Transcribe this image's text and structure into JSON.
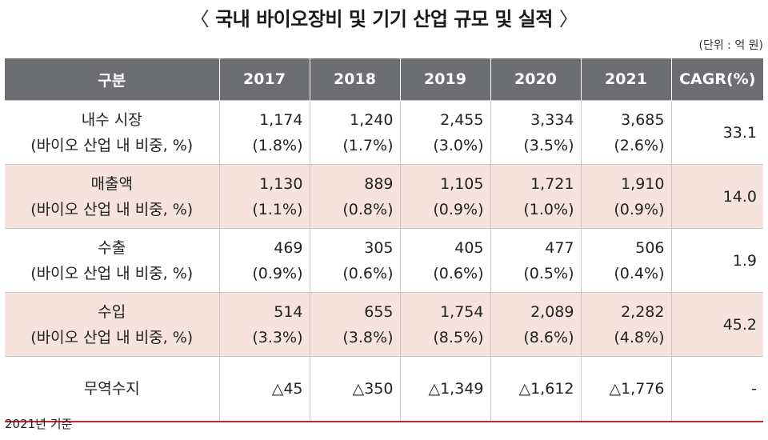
{
  "title": "국내 바이오장비 및 기기 산업 규모 및 실적",
  "title_left": "〈",
  "title_right": "〉",
  "unit": "(단위 : 억 원)",
  "headers": [
    "구분",
    "2017",
    "2018",
    "2019",
    "2020",
    "2021",
    "CAGR(%)"
  ],
  "rows": [
    {
      "label": "내수 시장",
      "sublabel": "(바이오 산업 내 비중, %)",
      "values": [
        "1,174",
        "1,240",
        "2,455",
        "3,334",
        "3,685"
      ],
      "shares": [
        "(1.8%)",
        "(1.7%)",
        "(3.0%)",
        "(3.5%)",
        "(2.6%)"
      ],
      "cagr": "33.1"
    },
    {
      "label": "매출액",
      "sublabel": "(바이오 산업 내 비중, %)",
      "values": [
        "1,130",
        "889",
        "1,105",
        "1,721",
        "1,910"
      ],
      "shares": [
        "(1.1%)",
        "(0.8%)",
        "(0.9%)",
        "(1.0%)",
        "(0.9%)"
      ],
      "cagr": "14.0"
    },
    {
      "label": "수출",
      "sublabel": "(바이오 산업 내 비중, %)",
      "values": [
        "469",
        "305",
        "405",
        "477",
        "506"
      ],
      "shares": [
        "(0.9%)",
        "(0.6%)",
        "(0.6%)",
        "(0.5%)",
        "(0.4%)"
      ],
      "cagr": "1.9"
    },
    {
      "label": "수입",
      "sublabel": "(바이오 산업 내 비중, %)",
      "values": [
        "514",
        "655",
        "1,754",
        "2,089",
        "2,282"
      ],
      "shares": [
        "(3.3%)",
        "(3.8%)",
        "(8.5%)",
        "(8.6%)",
        "(4.8%)"
      ],
      "cagr": "45.2"
    },
    {
      "label": "무역수지",
      "values": [
        "△45",
        "△350",
        "△1,349",
        "△1,612",
        "△1,776"
      ],
      "cagr": "-"
    }
  ],
  "footnote": "2021년 기준",
  "colors": {
    "header_bg": "#6d6e71",
    "shade": "#f6e4dc",
    "bottom_rule": "#c4262e"
  }
}
